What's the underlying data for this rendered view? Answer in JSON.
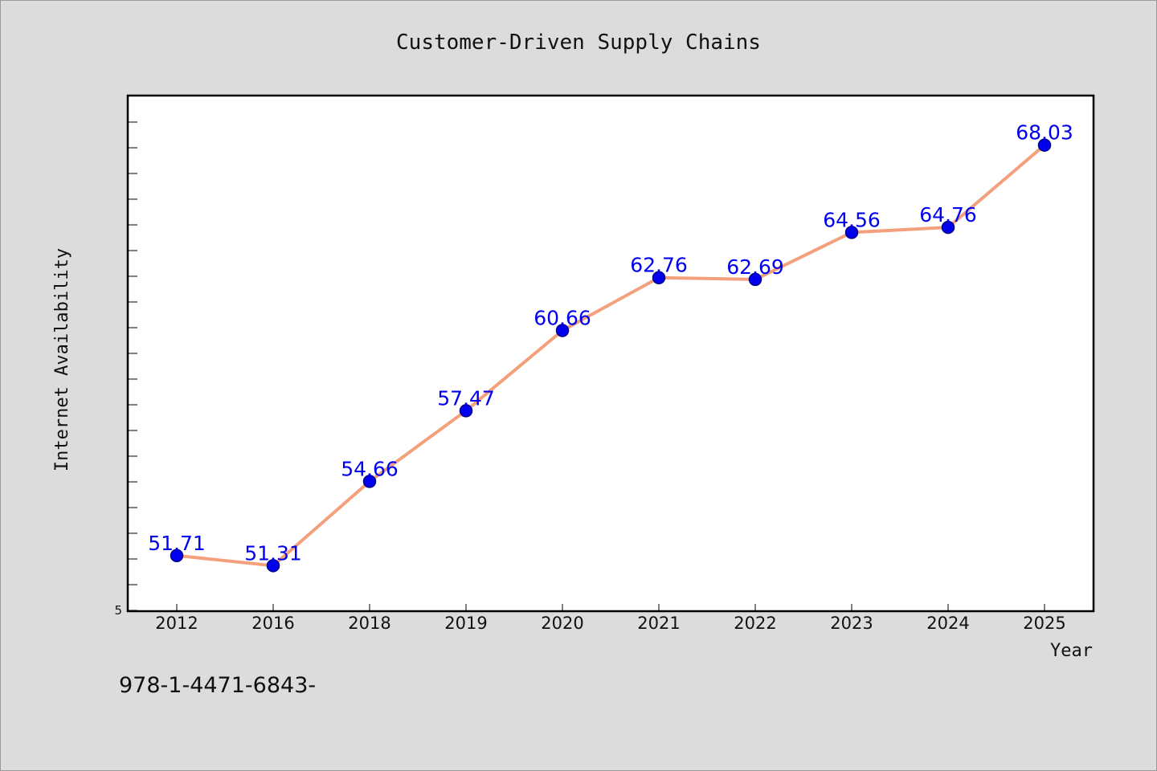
{
  "chart_data": {
    "type": "line",
    "title": "Customer-Driven Supply Chains",
    "xlabel": "Year",
    "ylabel": "Internet Availability",
    "categories": [
      "2012",
      "2016",
      "2018",
      "2019",
      "2020",
      "2021",
      "2022",
      "2023",
      "2024",
      "2025"
    ],
    "series": [
      {
        "values": [
          51.71,
          51.31,
          54.66,
          57.47,
          60.66,
          62.76,
          62.69,
          64.56,
          64.76,
          68.03
        ]
      }
    ],
    "data_labels": [
      "51.71",
      "51.31",
      "54.66",
      "57.47",
      "60.66",
      "62.76",
      "62.69",
      "64.56",
      "64.76",
      "68.03"
    ],
    "y_tick_labels": [
      "5"
    ],
    "ylim": [
      49.5,
      70
    ],
    "grid": false,
    "legend": "none",
    "colors": {
      "line": "#f4a07c",
      "marker": "#0000ee",
      "marker_edge": "#00008b",
      "label": "#0000ee",
      "background": "#dcdcdc",
      "plot_background": "#ffffff"
    }
  },
  "footer": {
    "text": "978-1-4471-6843-"
  }
}
